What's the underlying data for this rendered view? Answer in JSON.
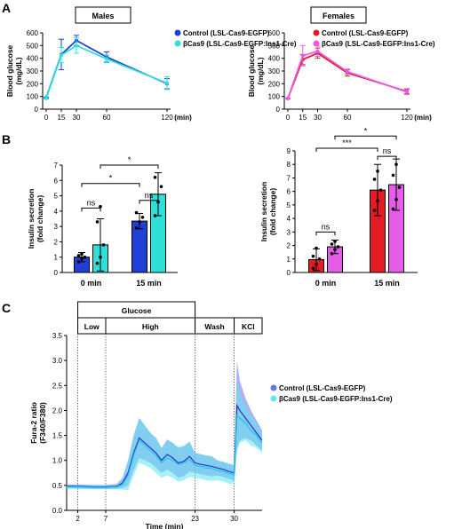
{
  "chart_data": [
    {
      "id": "A-males",
      "panel_letter": "A",
      "type": "line",
      "box_title": "Males",
      "ylabel_lines": [
        "Blood glucose",
        "(mg/dL)"
      ],
      "xlabel_unit": "(min)",
      "ylim": [
        0,
        600
      ],
      "yticks": [
        0,
        100,
        200,
        300,
        400,
        500,
        600
      ],
      "xticks": [
        0,
        15,
        30,
        60,
        120
      ],
      "xlim": [
        0,
        120
      ],
      "x": [
        0,
        15,
        30,
        60,
        120
      ],
      "series": [
        {
          "name": "Control (LSL-Cas9-EGFP)",
          "color": "#1f3fd6",
          "values": [
            90,
            430,
            540,
            410,
            200
          ],
          "err": [
            5,
            120,
            40,
            40,
            40
          ]
        },
        {
          "name": "βCas9 (LSL-Cas9-EGFP:Ins1-Cre)",
          "color": "#2fe0d8",
          "values": [
            85,
            425,
            500,
            395,
            205
          ],
          "err": [
            5,
            60,
            60,
            30,
            50
          ]
        }
      ],
      "legend_position": "top-right"
    },
    {
      "id": "A-females",
      "panel_letter": "",
      "type": "line",
      "box_title": "Females",
      "ylabel_lines": [
        "Blood glucose",
        "(mg/dL)"
      ],
      "xlabel_unit": "(min)",
      "ylim": [
        0,
        600
      ],
      "yticks": [
        0,
        100,
        200,
        300,
        400,
        500,
        600
      ],
      "xticks": [
        0,
        15,
        30,
        60,
        120
      ],
      "xlim": [
        0,
        120
      ],
      "x": [
        0,
        15,
        30,
        60,
        120
      ],
      "series": [
        {
          "name": "Control (LSL-Cas9-EGFP)",
          "color": "#e31b23",
          "values": [
            85,
            390,
            440,
            285,
            140
          ],
          "err": [
            5,
            40,
            40,
            25,
            20
          ]
        },
        {
          "name": "βCas9 (LSL-Cas9-EGFP:Ins1-Cre)",
          "color": "#e65ce8",
          "values": [
            85,
            420,
            455,
            295,
            135
          ],
          "err": [
            5,
            80,
            40,
            20,
            20
          ]
        }
      ],
      "legend_position": "top-right"
    },
    {
      "id": "B-males",
      "panel_letter": "B",
      "type": "bar",
      "ylabel_lines": [
        "Insulin secretion",
        "(fold change)"
      ],
      "ylim": [
        0,
        7
      ],
      "yticks": [
        0,
        1,
        2,
        3,
        4,
        5,
        6,
        7
      ],
      "groups": [
        "0 min",
        "15 min"
      ],
      "series": [
        {
          "name": "Control (LSL-Cas9-EGFP)",
          "color": "#1f3fd6",
          "values": [
            1.0,
            3.35
          ],
          "err": [
            0.3,
            0.5
          ],
          "points": [
            [
              0.7,
              0.9,
              1.0,
              1.1,
              1.2
            ],
            [
              2.9,
              3.3,
              3.6,
              3.9
            ]
          ]
        },
        {
          "name": "βCas9 (LSL-Cas9-EGFP:Ins1-Cre)",
          "color": "#2fe0d8",
          "values": [
            1.8,
            5.1
          ],
          "err": [
            1.7,
            1.4
          ],
          "points": [
            [
              0.6,
              1.0,
              1.8,
              3.3,
              4.3
            ],
            [
              3.7,
              4.6,
              5.6,
              6.2
            ]
          ]
        }
      ],
      "annotations": [
        {
          "label": "ns",
          "from": [
            0,
            0
          ],
          "to": [
            0,
            1
          ],
          "y": 4.2
        },
        {
          "label": "ns",
          "from": [
            1,
            0
          ],
          "to": [
            1,
            1
          ],
          "y": 4.7
        },
        {
          "label": "*",
          "from": [
            0,
            0
          ],
          "to": [
            1,
            0
          ],
          "y": 5.8
        },
        {
          "label": "*",
          "from": [
            0,
            1
          ],
          "to": [
            1,
            1
          ],
          "y": 7.0
        }
      ]
    },
    {
      "id": "B-females",
      "panel_letter": "",
      "type": "bar",
      "ylabel_lines": [
        "Insulin secretion",
        "(fold change)"
      ],
      "ylim": [
        0,
        9
      ],
      "yticks": [
        0,
        1,
        2,
        3,
        4,
        5,
        6,
        7,
        8,
        9
      ],
      "groups": [
        "0 min",
        "15 min"
      ],
      "series": [
        {
          "name": "Control (LSL-Cas9-EGFP)",
          "color": "#e31b23",
          "values": [
            0.95,
            6.1
          ],
          "err": [
            0.8,
            1.9
          ],
          "points": [
            [
              0.3,
              0.6,
              1.0,
              1.2,
              1.8
            ],
            [
              4.6,
              5.3,
              6.1,
              6.9,
              7.5
            ]
          ]
        },
        {
          "name": "βCas9 (LSL-Cas9-EGFP:Ins1-Cre)",
          "color": "#e65ce8",
          "values": [
            1.9,
            6.5
          ],
          "err": [
            0.5,
            1.9
          ],
          "points": [
            [
              1.4,
              1.7,
              1.9,
              2.1,
              2.3
            ],
            [
              4.7,
              5.4,
              6.3,
              7.2,
              8.0
            ]
          ]
        }
      ],
      "annotations": [
        {
          "label": "ns",
          "from": [
            0,
            0
          ],
          "to": [
            0,
            1
          ],
          "y": 3.0
        },
        {
          "label": "ns",
          "from": [
            1,
            0
          ],
          "to": [
            1,
            1
          ],
          "y": 8.6
        },
        {
          "label": "***",
          "from": [
            0,
            0
          ],
          "to": [
            1,
            0
          ],
          "y": 9.2
        },
        {
          "label": "*",
          "from": [
            0,
            1
          ],
          "to": [
            1,
            1
          ],
          "y": 10.1
        }
      ]
    },
    {
      "id": "C",
      "panel_letter": "C",
      "type": "line",
      "ylabel_lines": [
        "Fura-2 ratio",
        "(F340/F380)"
      ],
      "xlabel": "Time (min)",
      "ylim": [
        0.0,
        3.5
      ],
      "yticks": [
        0.0,
        0.5,
        1.0,
        1.5,
        2.0,
        2.5,
        3.0,
        3.5
      ],
      "yticklabels": [
        "0.0",
        "0.5",
        "1.0",
        "1.5",
        "2.0",
        "2.5",
        "3.0",
        "3.5"
      ],
      "xlim": [
        0,
        35
      ],
      "xticks": [
        2,
        7,
        23,
        30
      ],
      "phase_header": "Glucose",
      "phases": [
        {
          "label": "Low",
          "start": 2,
          "end": 7
        },
        {
          "label": "High",
          "start": 7,
          "end": 23
        },
        {
          "label": "Wash",
          "start": 23,
          "end": 30
        },
        {
          "label": "KCl",
          "start": 30,
          "end": 35
        }
      ],
      "series": [
        {
          "name": "Control (LSL-Cas9-EGFP)",
          "color": "#2b2fc6",
          "band_color": "#6b72e8",
          "x": [
            0,
            2,
            5,
            7,
            9,
            10,
            11,
            12,
            13,
            14,
            15,
            16,
            17,
            18,
            19,
            20,
            21,
            22,
            23,
            24,
            25,
            26,
            27,
            28,
            29,
            30,
            30.5,
            31,
            32,
            33,
            34,
            35
          ],
          "y": [
            0.48,
            0.48,
            0.47,
            0.47,
            0.48,
            0.55,
            0.75,
            1.15,
            1.45,
            1.35,
            1.25,
            1.15,
            1.0,
            1.12,
            1.05,
            0.95,
            0.98,
            1.08,
            0.95,
            0.92,
            0.9,
            0.88,
            0.85,
            0.82,
            0.78,
            0.75,
            2.1,
            2.0,
            1.85,
            1.7,
            1.55,
            1.4
          ],
          "err": [
            0.04,
            0.04,
            0.04,
            0.04,
            0.05,
            0.1,
            0.25,
            0.35,
            0.4,
            0.35,
            0.3,
            0.3,
            0.25,
            0.3,
            0.3,
            0.3,
            0.3,
            0.3,
            0.2,
            0.2,
            0.2,
            0.2,
            0.15,
            0.15,
            0.15,
            0.15,
            0.9,
            0.6,
            0.4,
            0.3,
            0.25,
            0.2
          ]
        },
        {
          "name": "βCas9 (LSL-Cas9-EGFP:Ins1-Cre)",
          "color": "#1ec4e8",
          "band_color": "#5fe6ee",
          "x": [
            0,
            2,
            5,
            7,
            9,
            10,
            11,
            12,
            13,
            14,
            15,
            16,
            17,
            18,
            19,
            20,
            21,
            22,
            23,
            24,
            25,
            26,
            27,
            28,
            29,
            30,
            30.5,
            31,
            32,
            33,
            34,
            35
          ],
          "y": [
            0.47,
            0.47,
            0.46,
            0.46,
            0.47,
            0.52,
            0.7,
            1.1,
            1.4,
            1.3,
            1.2,
            1.1,
            0.95,
            1.05,
            1.0,
            0.92,
            0.95,
            1.02,
            0.9,
            0.88,
            0.85,
            0.84,
            0.8,
            0.78,
            0.74,
            0.72,
            1.9,
            1.85,
            1.75,
            1.6,
            1.5,
            1.35
          ],
          "err": [
            0.04,
            0.04,
            0.04,
            0.04,
            0.05,
            0.1,
            0.3,
            0.4,
            0.45,
            0.4,
            0.35,
            0.35,
            0.3,
            0.35,
            0.35,
            0.35,
            0.35,
            0.35,
            0.25,
            0.25,
            0.25,
            0.25,
            0.2,
            0.2,
            0.2,
            0.2,
            0.7,
            0.5,
            0.35,
            0.3,
            0.25,
            0.2
          ]
        }
      ],
      "legend_position": "right"
    }
  ]
}
